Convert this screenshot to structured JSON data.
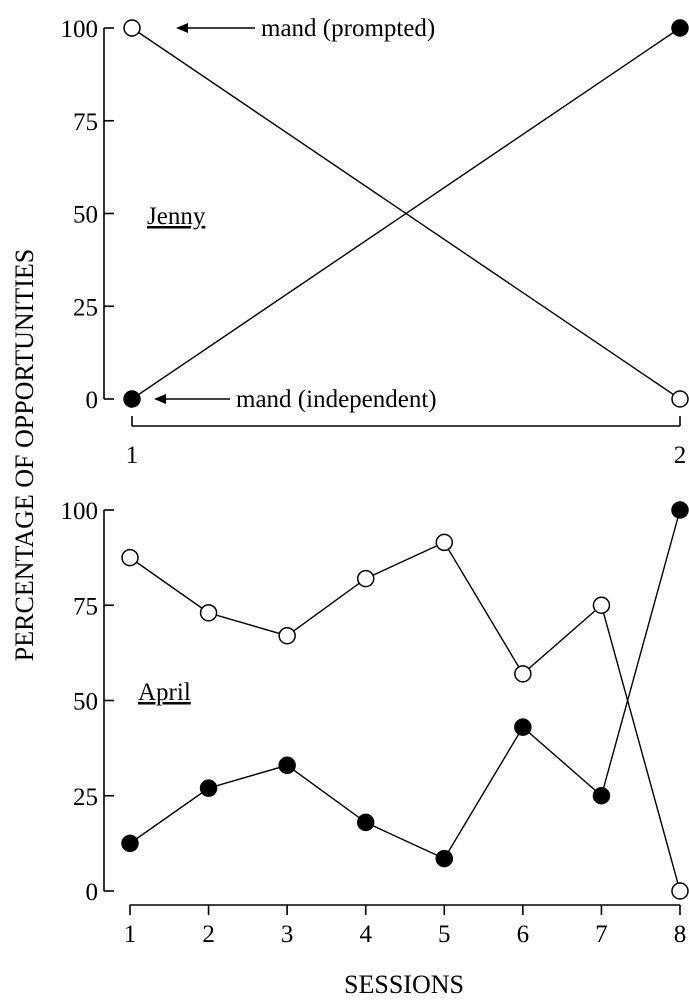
{
  "y_title": "PERCENTAGE OF OPPORTUNITIES",
  "x_title": "SESSIONS",
  "chart_data": [
    {
      "type": "line",
      "panel_label": "Jenny",
      "x": [
        1,
        2
      ],
      "xlim": [
        1,
        2
      ],
      "ylim": [
        0,
        100
      ],
      "y_ticks": [
        0,
        25,
        50,
        75,
        100
      ],
      "x_ticks": [
        1,
        2
      ],
      "series": [
        {
          "name": "mand (prompted)",
          "marker": "open",
          "values": [
            100,
            0
          ]
        },
        {
          "name": "mand (independent)",
          "marker": "filled",
          "values": [
            0,
            100
          ]
        }
      ],
      "annotations": [
        "mand (prompted)",
        "mand (independent)"
      ]
    },
    {
      "type": "line",
      "panel_label": "April",
      "x": [
        1,
        2,
        3,
        4,
        5,
        6,
        7,
        8
      ],
      "xlim": [
        1,
        8
      ],
      "ylim": [
        0,
        100
      ],
      "y_ticks": [
        0,
        25,
        50,
        75,
        100
      ],
      "x_ticks": [
        1,
        2,
        3,
        4,
        5,
        6,
        7,
        8
      ],
      "series": [
        {
          "name": "mand (prompted)",
          "marker": "open",
          "values": [
            87.5,
            73,
            67,
            82,
            91.5,
            57,
            75,
            0
          ]
        },
        {
          "name": "mand (independent)",
          "marker": "filled",
          "values": [
            12.5,
            27,
            33,
            18,
            8.5,
            43,
            25,
            100
          ]
        }
      ]
    }
  ]
}
